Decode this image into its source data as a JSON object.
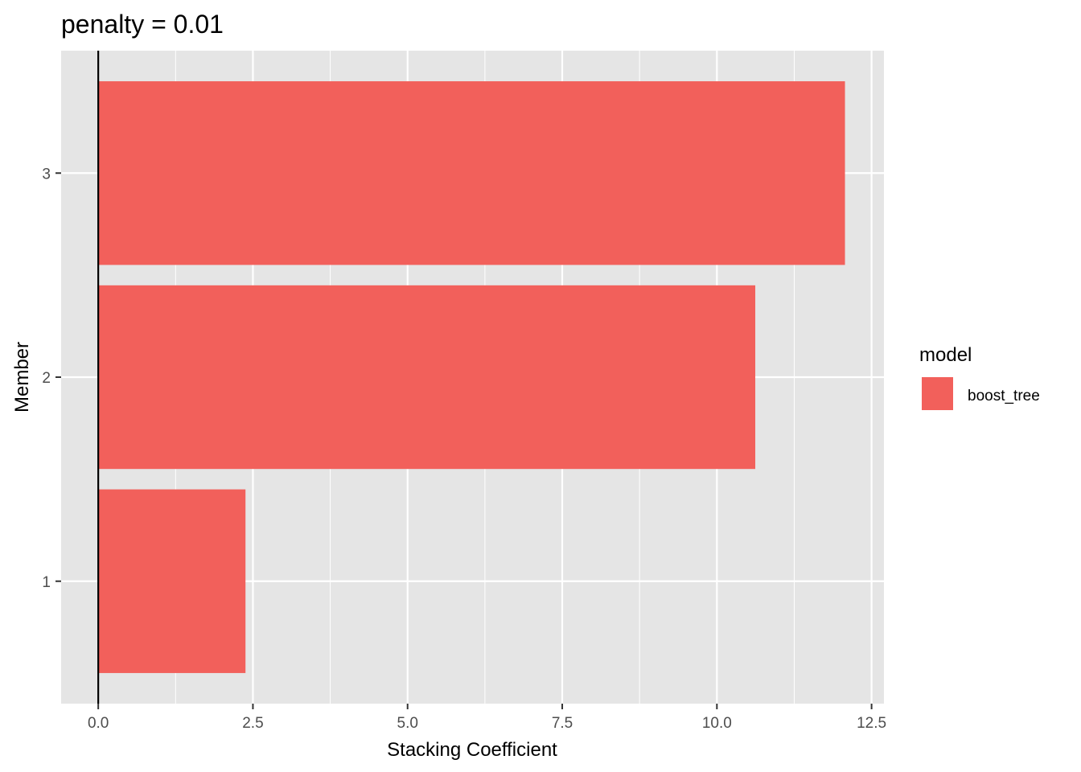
{
  "chart_data": {
    "type": "bar",
    "orientation": "horizontal",
    "title": "penalty = 0.01",
    "xlabel": "Stacking Coefficient",
    "ylabel": "Member",
    "categories": [
      "1",
      "2",
      "3"
    ],
    "series": [
      {
        "name": "boost_tree",
        "values": [
          2.38,
          10.62,
          12.07
        ],
        "color": "#F2605B"
      }
    ],
    "xlim": [
      -0.6,
      12.7
    ],
    "xticks": [
      "0.0",
      "2.5",
      "5.0",
      "7.5",
      "10.0",
      "12.5"
    ],
    "xtick_values": [
      0,
      2.5,
      5,
      7.5,
      10,
      12.5
    ],
    "vline_at": 0,
    "grid": true,
    "panel_background": "#E5E5E5",
    "legend": {
      "title": "model",
      "position": "right"
    }
  }
}
